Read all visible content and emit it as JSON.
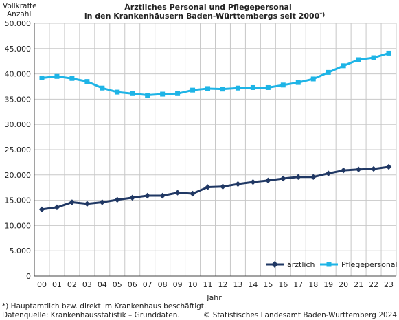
{
  "chart_data": {
    "type": "line",
    "title_line1": "Ärztliches Personal und Pflegepersonal",
    "title_line2": "in den Krankenhäusern Baden-Württembergs seit 2000",
    "title_marker": "*)",
    "ylabel_line1": "Vollkräfte",
    "ylabel_line2": "Anzahl",
    "xlabel": "Jahr",
    "ylim": [
      0,
      50000
    ],
    "yticks": [
      0,
      5000,
      10000,
      15000,
      20000,
      25000,
      30000,
      35000,
      40000,
      45000,
      50000
    ],
    "ytick_labels": [
      "0",
      "5.000",
      "10.000",
      "15.000",
      "20.000",
      "25.000",
      "30.000",
      "35.000",
      "40.000",
      "45.000",
      "50.000"
    ],
    "categories": [
      "00",
      "01",
      "02",
      "03",
      "04",
      "05",
      "06",
      "07",
      "08",
      "09",
      "10",
      "11",
      "12",
      "13",
      "14",
      "15",
      "16",
      "17",
      "18",
      "19",
      "20",
      "21",
      "22",
      "23"
    ],
    "grid": true,
    "legend_position": "bottom-right",
    "series": [
      {
        "name": "ärztlich",
        "color": "#203864",
        "marker": "diamond",
        "values": [
          13200,
          13600,
          14600,
          14300,
          14600,
          15100,
          15500,
          15900,
          15900,
          16500,
          16300,
          17600,
          17700,
          18200,
          18600,
          18900,
          19300,
          19600,
          19600,
          20300,
          20900,
          21100,
          21200,
          21600
        ]
      },
      {
        "name": "Pflegepersonal",
        "color": "#1eb4e6",
        "marker": "square",
        "values": [
          39200,
          39500,
          39100,
          38500,
          37200,
          36400,
          36100,
          35800,
          36000,
          36100,
          36800,
          37100,
          37000,
          37200,
          37300,
          37300,
          37800,
          38300,
          39000,
          40300,
          41600,
          42800,
          43200,
          44100
        ]
      }
    ]
  },
  "footnotes": {
    "note": "*) Hauptamtlich bzw. direkt im Krankenhaus beschäftigt.",
    "source": "Datenquelle: Krankenhausstatistik – Grunddaten.",
    "copyright": "© Statistisches Landesamt Baden-Württemberg 2024"
  }
}
